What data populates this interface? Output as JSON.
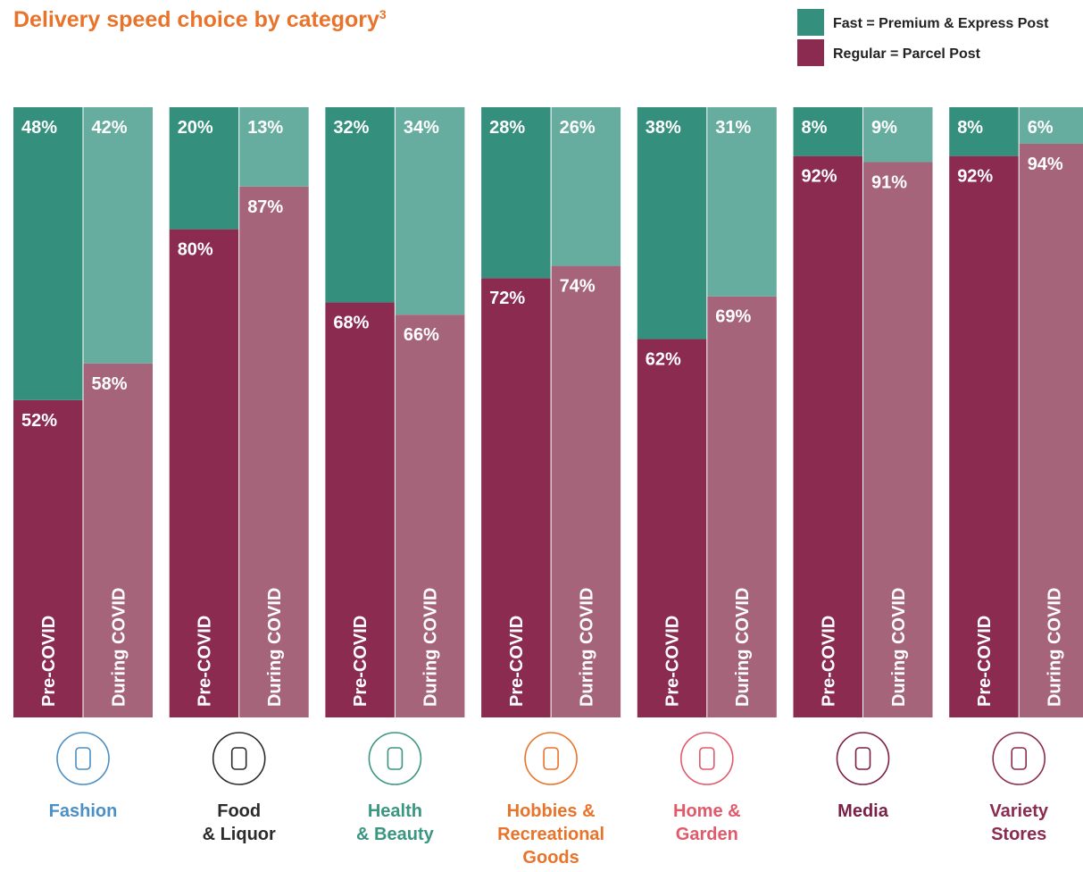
{
  "chart_data": {
    "type": "bar",
    "stacked": true,
    "title": "Delivery speed choice by category",
    "title_note": "3",
    "title_color": "#e8732a",
    "categories": [
      "Fashion",
      "Food\n& Liquor",
      "Health\n& Beauty",
      "Hobbies &\nRecreational\nGoods",
      "Home &\nGarden",
      "Media",
      "Variety\nStores"
    ],
    "category_colors": [
      "#4a8fc6",
      "#2b2b2b",
      "#3a9680",
      "#e8732a",
      "#e05a6a",
      "#7a1f45",
      "#8a2b4f"
    ],
    "periods": [
      "Pre-COVID",
      "During COVID"
    ],
    "ylim": [
      0,
      100
    ],
    "series": [
      {
        "name": "Fast = Premium & Express Post",
        "color": "#358f7d",
        "period_colors": [
          "#358f7d",
          "#67ad9f"
        ],
        "values": [
          [
            48,
            42
          ],
          [
            20,
            13
          ],
          [
            32,
            34
          ],
          [
            28,
            26
          ],
          [
            38,
            31
          ],
          [
            8,
            9
          ],
          [
            8,
            6
          ]
        ],
        "value_labels": [
          [
            "48%",
            "42%"
          ],
          [
            "20%",
            "13%"
          ],
          [
            "32%",
            "34%"
          ],
          [
            "28%",
            "26%"
          ],
          [
            "38%",
            "31%"
          ],
          [
            "8%",
            "9%"
          ],
          [
            "8%",
            "6%"
          ]
        ]
      },
      {
        "name": "Regular = Parcel Post",
        "color": "#8a2b4f",
        "period_colors": [
          "#8a2b4f",
          "#a6647b"
        ],
        "values": [
          [
            52,
            58
          ],
          [
            80,
            87
          ],
          [
            68,
            66
          ],
          [
            72,
            74
          ],
          [
            62,
            69
          ],
          [
            92,
            91
          ],
          [
            92,
            94
          ]
        ],
        "value_labels": [
          [
            "52%",
            "58%"
          ],
          [
            "80%",
            "87%"
          ],
          [
            "68%",
            "66%"
          ],
          [
            "72%",
            "74%"
          ],
          [
            "62%",
            "69%"
          ],
          [
            "92%",
            "91%"
          ],
          [
            "92%",
            "94%"
          ]
        ]
      }
    ]
  }
}
